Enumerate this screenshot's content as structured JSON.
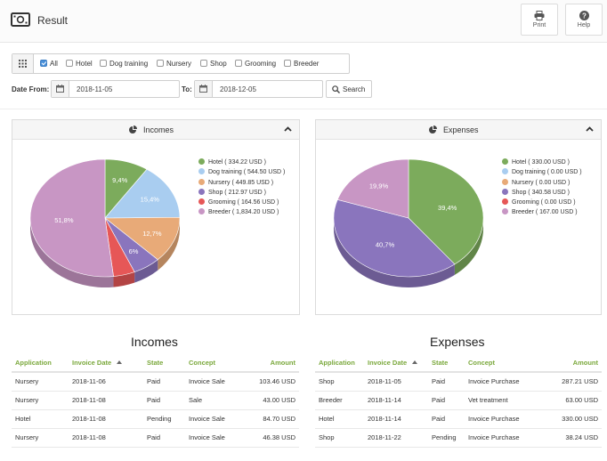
{
  "header": {
    "title": "Result",
    "print_label": "Print",
    "help_label": "Help"
  },
  "filters": {
    "checkboxes": [
      {
        "label": "All",
        "checked": true
      },
      {
        "label": "Hotel",
        "checked": false
      },
      {
        "label": "Dog training",
        "checked": false
      },
      {
        "label": "Nursery",
        "checked": false
      },
      {
        "label": "Shop",
        "checked": false
      },
      {
        "label": "Grooming",
        "checked": false
      },
      {
        "label": "Breeder",
        "checked": false
      }
    ],
    "date_from_label": "Date From:",
    "date_from": "2018-11-05",
    "to_label": "To:",
    "date_to": "2018-12-05",
    "search_label": "Search"
  },
  "colors": {
    "hotel": "#7cab5c",
    "dog_training": "#a9cdf0",
    "nursery": "#e8aa78",
    "shop": "#8a75bd",
    "grooming": "#e65757",
    "breeder": "#c896c4",
    "header_green": "#7aa83b"
  },
  "incomes_panel": {
    "title": "Incomes",
    "legend": [
      "Hotel ( 334.22 USD )",
      "Dog training ( 544.50 USD )",
      "Nursery ( 449.85 USD )",
      "Shop ( 212.97 USD )",
      "Grooming ( 164.56 USD )",
      "Breeder ( 1,834.20 USD )"
    ]
  },
  "expenses_panel": {
    "title": "Expenses",
    "legend": [
      "Hotel ( 330.00 USD )",
      "Dog training ( 0.00 USD )",
      "Nursery ( 0.00 USD )",
      "Shop ( 340.58 USD )",
      "Grooming ( 0.00 USD )",
      "Breeder ( 167.00 USD )"
    ]
  },
  "chart_data": [
    {
      "type": "pie",
      "title": "Incomes",
      "categories": [
        "Hotel",
        "Dog training",
        "Nursery",
        "Shop",
        "Grooming",
        "Breeder"
      ],
      "values": [
        334.22,
        544.5,
        449.85,
        212.97,
        164.56,
        1834.2
      ],
      "slice_labels": [
        "9,4%",
        "15,4%",
        "12,7%",
        "6%",
        "",
        "51,8%"
      ],
      "legend_position": "right"
    },
    {
      "type": "pie",
      "title": "Expenses",
      "categories": [
        "Hotel",
        "Dog training",
        "Nursery",
        "Shop",
        "Grooming",
        "Breeder"
      ],
      "values": [
        330.0,
        0.0,
        0.0,
        340.58,
        0.0,
        167.0
      ],
      "slice_labels": [
        "39,4%",
        "",
        "",
        "40,7%",
        "",
        "19,9%"
      ],
      "legend_position": "right"
    }
  ],
  "incomes_table": {
    "title": "Incomes",
    "columns": [
      "Application",
      "Invoice Date",
      "State",
      "Concept",
      "Amount"
    ],
    "rows": [
      [
        "Nursery",
        "2018-11-06",
        "Paid",
        "Invoice Sale",
        "103.46 USD"
      ],
      [
        "Nursery",
        "2018-11-08",
        "Paid",
        "Sale",
        "43.00 USD"
      ],
      [
        "Hotel",
        "2018-11-08",
        "Pending",
        "Invoice Sale",
        "84.70 USD"
      ],
      [
        "Nursery",
        "2018-11-08",
        "Paid",
        "Invoice Sale",
        "46.38 USD"
      ]
    ]
  },
  "expenses_table": {
    "title": "Expenses",
    "columns": [
      "Application",
      "Invoice Date",
      "State",
      "Concept",
      "Amount"
    ],
    "rows": [
      [
        "Shop",
        "2018-11-05",
        "Paid",
        "Invoice Purchase",
        "287.21 USD"
      ],
      [
        "Breeder",
        "2018-11-14",
        "Paid",
        "Vet treatment",
        "63.00 USD"
      ],
      [
        "Hotel",
        "2018-11-14",
        "Paid",
        "Invoice Purchase",
        "330.00 USD"
      ],
      [
        "Shop",
        "2018-11-22",
        "Pending",
        "Invoice Purchase",
        "38.24 USD"
      ]
    ]
  }
}
